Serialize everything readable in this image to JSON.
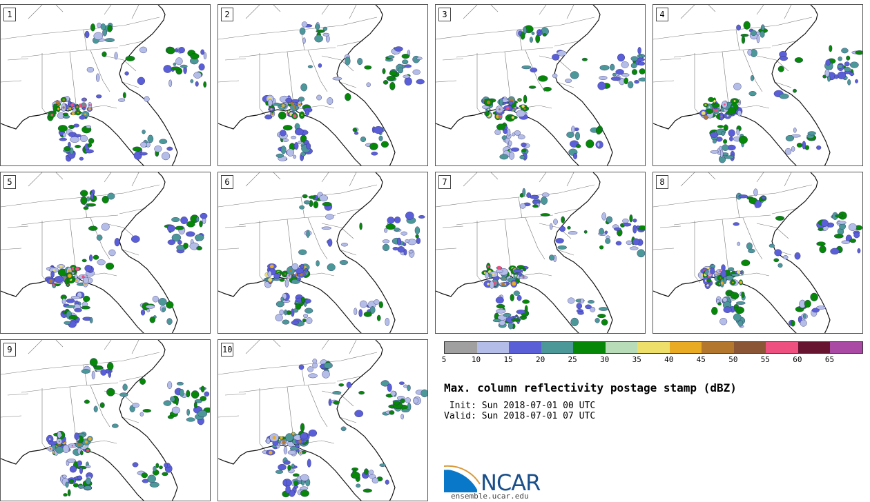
{
  "members": [
    "1",
    "2",
    "3",
    "4",
    "5",
    "6",
    "7",
    "8",
    "9",
    "10"
  ],
  "colorbar": {
    "ticks": [
      "5",
      "10",
      "15",
      "20",
      "25",
      "30",
      "35",
      "40",
      "45",
      "50",
      "55",
      "60",
      "65"
    ],
    "colors": [
      "#a0a0a0",
      "#b4bde8",
      "#5a5fd8",
      "#4c9898",
      "#078707",
      "#b8dbb8",
      "#eedf6a",
      "#eaab24",
      "#b3782e",
      "#8a5636",
      "#ee5080",
      "#661430",
      "#ab4aa4"
    ]
  },
  "title": "Max. column reflectivity postage stamp (dBZ)",
  "init": " Init: Sun 2018-07-01 00 UTC",
  "valid": "Valid: Sun 2018-07-01 07 UTC",
  "logo": {
    "text": "NCAR",
    "url": "ensemble.ucar.edu"
  }
}
